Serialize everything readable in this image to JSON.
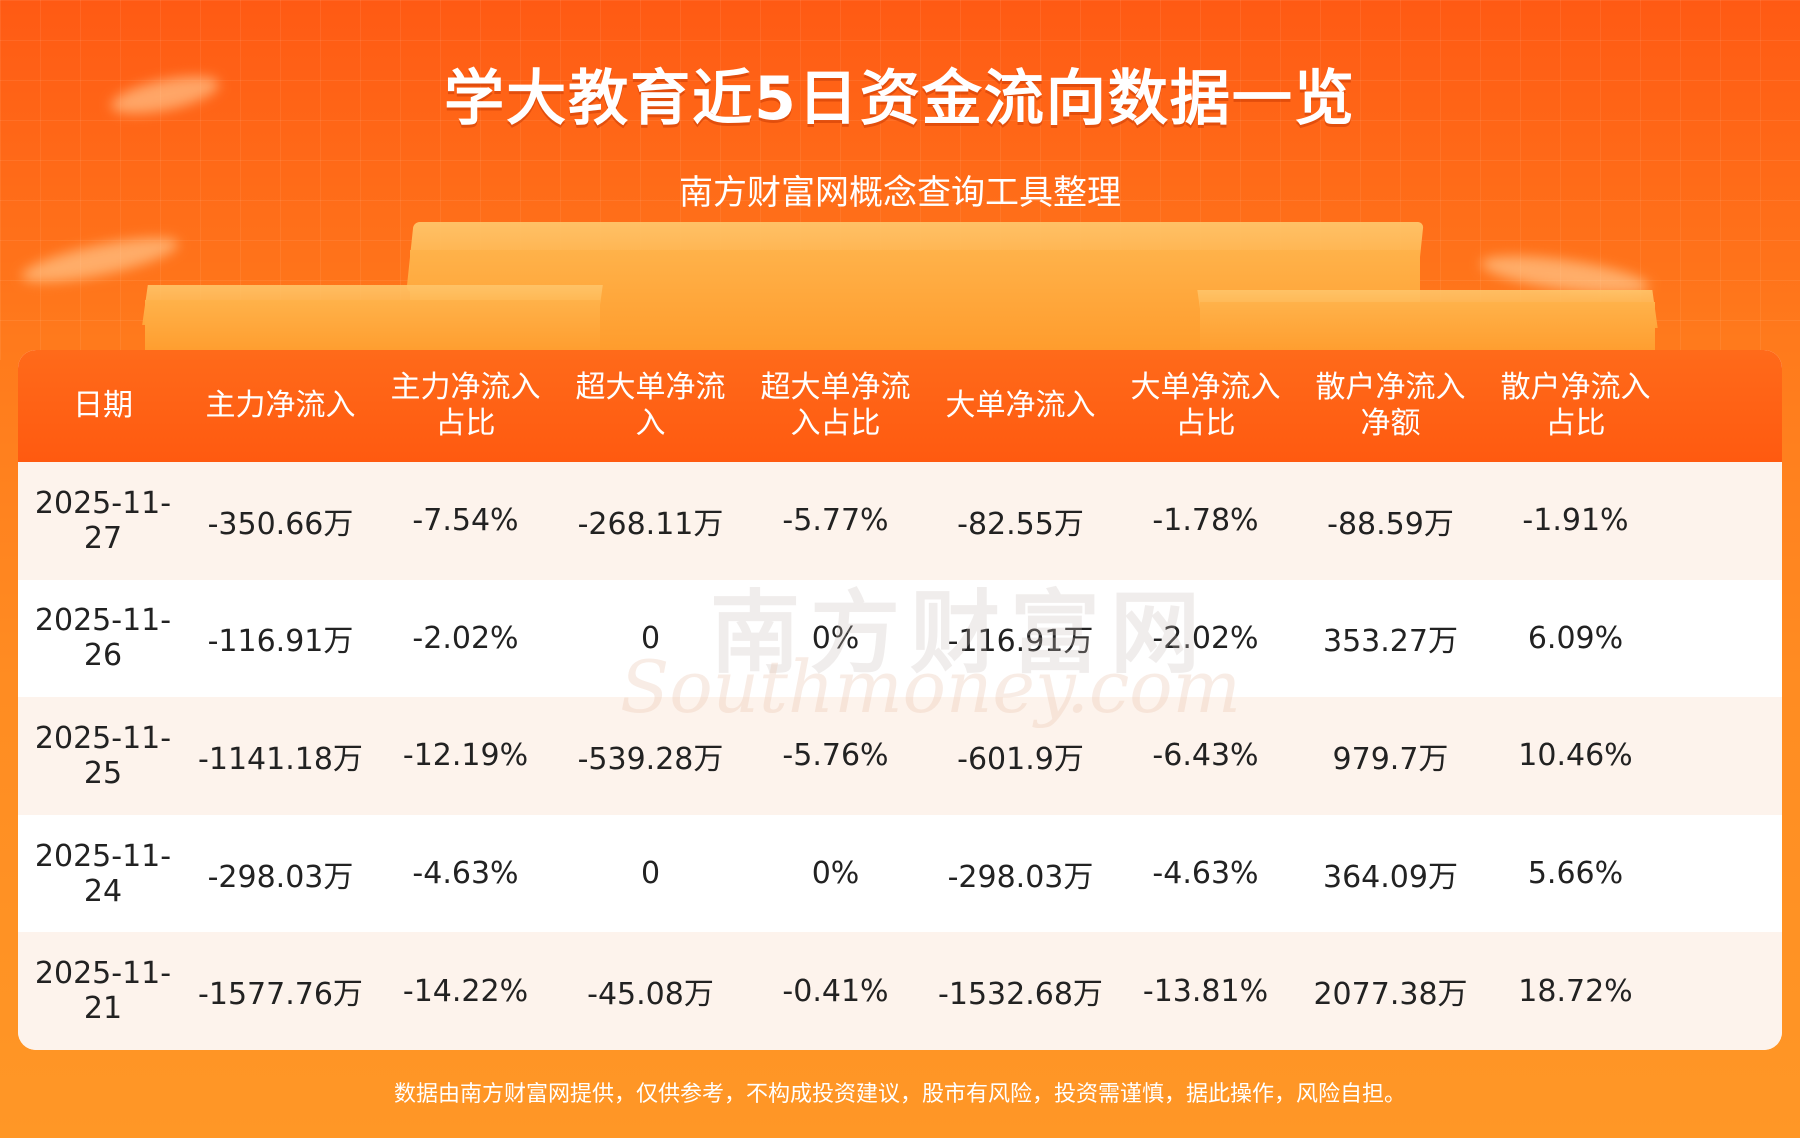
{
  "header": {
    "title": "学大教育近5日资金流向数据一览",
    "subtitle": "南方财富网概念查询工具整理"
  },
  "table": {
    "columns": [
      "日期",
      "主力净流入",
      "主力净流入\n占比",
      "超大单净流\n入",
      "超大单净流\n入占比",
      "大单净流入",
      "大单净流入\n占比",
      "散户净流入\n净额",
      "散户净流入\n占比"
    ],
    "rows": [
      [
        "2025-11-27",
        "-350.66万",
        "-7.54%",
        "-268.11万",
        "-5.77%",
        "-82.55万",
        "-1.78%",
        "-88.59万",
        "-1.91%"
      ],
      [
        "2025-11-26",
        "-116.91万",
        "-2.02%",
        "0",
        "0%",
        "-116.91万",
        "-2.02%",
        "353.27万",
        "6.09%"
      ],
      [
        "2025-11-25",
        "-1141.18万",
        "-12.19%",
        "-539.28万",
        "-5.76%",
        "-601.9万",
        "-6.43%",
        "979.7万",
        "10.46%"
      ],
      [
        "2025-11-24",
        "-298.03万",
        "-4.63%",
        "0",
        "0%",
        "-298.03万",
        "-4.63%",
        "364.09万",
        "5.66%"
      ],
      [
        "2025-11-21",
        "-1577.76万",
        "-14.22%",
        "-45.08万",
        "-0.41%",
        "-1532.68万",
        "-13.81%",
        "2077.38万",
        "18.72%"
      ]
    ]
  },
  "watermark": {
    "cn": "南方财富网",
    "en": "Southmoney.com"
  },
  "footer": {
    "disclaimer": "数据由南方财富网提供，仅供参考，不构成投资建议，股市有风险，投资需谨慎，据此操作，风险自担。"
  },
  "colors": {
    "header_bg": "#ff5a10",
    "row_alt": "#fdf3ec",
    "row": "#ffffff",
    "text": "#222222"
  }
}
